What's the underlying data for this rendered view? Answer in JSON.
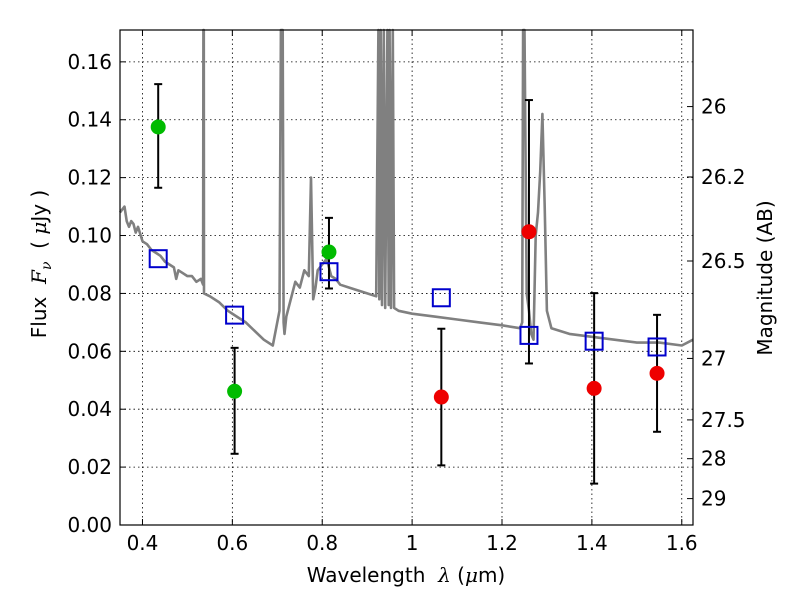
{
  "chart_data": {
    "type": "scatter",
    "xlabel": "Wavelength λ (μm)",
    "ylabel": "Flux F_ν (μJy)",
    "ylabel_right": "Magnitude (AB)",
    "xlim": [
      0.35,
      1.625
    ],
    "ylim": [
      0.0,
      0.171
    ],
    "grid": true,
    "x_ticks": [
      0.4,
      0.6,
      0.8,
      1.0,
      1.2,
      1.4,
      1.6
    ],
    "x_tick_labels": [
      "0.4",
      "0.6",
      "0.8",
      "1",
      "1.2",
      "1.4",
      "1.6"
    ],
    "y_ticks": [
      0.0,
      0.02,
      0.04,
      0.06,
      0.08,
      0.1,
      0.12,
      0.14,
      0.16
    ],
    "y_tick_labels": [
      "0.00",
      "0.02",
      "0.04",
      "0.06",
      "0.08",
      "0.10",
      "0.12",
      "0.14",
      "0.16"
    ],
    "right_ticks": [
      {
        "label": "26",
        "mag": 26.0
      },
      {
        "label": "26.2",
        "mag": 26.2
      },
      {
        "label": "26.5",
        "mag": 26.5
      },
      {
        "label": "27",
        "mag": 27.0
      },
      {
        "label": "27.5",
        "mag": 27.5
      },
      {
        "label": "28",
        "mag": 28.0
      },
      {
        "label": "29",
        "mag": 29.0
      }
    ],
    "model_spectrum": {
      "color": "#808080",
      "x": [
        0.35,
        0.36,
        0.365,
        0.37,
        0.375,
        0.38,
        0.385,
        0.39,
        0.4,
        0.41,
        0.42,
        0.43,
        0.44,
        0.45,
        0.46,
        0.47,
        0.475,
        0.48,
        0.49,
        0.5,
        0.51,
        0.52,
        0.53,
        0.535,
        0.5355,
        0.536,
        0.5365,
        0.537,
        0.55,
        0.57,
        0.59,
        0.61,
        0.63,
        0.65,
        0.67,
        0.69,
        0.705,
        0.708,
        0.71,
        0.712,
        0.714,
        0.716,
        0.72,
        0.73,
        0.74,
        0.75,
        0.76,
        0.77,
        0.775,
        0.78,
        0.785,
        0.79,
        0.8,
        0.81,
        0.82,
        0.83,
        0.84,
        0.86,
        0.88,
        0.9,
        0.92,
        0.925,
        0.927,
        0.93,
        0.933,
        0.937,
        0.94,
        0.945,
        0.948,
        0.95,
        0.953,
        0.957,
        0.96,
        0.97,
        1.0,
        1.05,
        1.1,
        1.15,
        1.2,
        1.24,
        1.245,
        1.247,
        1.25,
        1.255,
        1.26,
        1.265,
        1.27,
        1.275,
        1.28,
        1.285,
        1.29,
        1.295,
        1.3,
        1.31,
        1.35,
        1.4,
        1.45,
        1.5,
        1.55,
        1.6,
        1.625
      ],
      "y": [
        0.108,
        0.11,
        0.105,
        0.103,
        0.105,
        0.104,
        0.101,
        0.103,
        0.098,
        0.097,
        0.095,
        0.094,
        0.093,
        0.091,
        0.09,
        0.089,
        0.085,
        0.088,
        0.087,
        0.086,
        0.086,
        0.084,
        0.085,
        0.083,
        0.171,
        0.171,
        0.171,
        0.08,
        0.079,
        0.077,
        0.074,
        0.072,
        0.07,
        0.067,
        0.064,
        0.062,
        0.074,
        0.171,
        0.171,
        0.171,
        0.07,
        0.066,
        0.072,
        0.078,
        0.084,
        0.082,
        0.088,
        0.086,
        0.12,
        0.078,
        0.082,
        0.088,
        0.09,
        0.092,
        0.086,
        0.085,
        0.083,
        0.082,
        0.081,
        0.08,
        0.079,
        0.171,
        0.078,
        0.171,
        0.076,
        0.171,
        0.075,
        0.171,
        0.076,
        0.171,
        0.075,
        0.171,
        0.075,
        0.074,
        0.073,
        0.072,
        0.071,
        0.07,
        0.069,
        0.068,
        0.07,
        0.171,
        0.171,
        0.08,
        0.074,
        0.066,
        0.064,
        0.1,
        0.108,
        0.122,
        0.142,
        0.11,
        0.074,
        0.068,
        0.066,
        0.065,
        0.064,
        0.063,
        0.063,
        0.062,
        0.064
      ]
    },
    "series": [
      {
        "color": "#00bb00",
        "marker": "circle",
        "x": [
          0.435,
          0.605,
          0.815
        ],
        "values": [
          0.1375,
          0.0462,
          0.0943
        ],
        "err": [
          [
            0.021,
            0.0148
          ],
          [
            0.0216,
            0.015
          ],
          [
            0.0126,
            0.0118
          ]
        ]
      },
      {
        "color": "#ee0000",
        "marker": "circle",
        "x": [
          1.065,
          1.26,
          1.405,
          1.545
        ],
        "values": [
          0.0442,
          0.1013,
          0.0472,
          0.0524
        ],
        "err": [
          [
            0.0236,
            0.0236
          ],
          [
            0.0455,
            0.0455
          ],
          [
            0.0329,
            0.0329
          ],
          [
            0.0202,
            0.0202
          ]
        ]
      },
      {
        "color": "#0000cc",
        "marker": "open-square",
        "x": [
          0.435,
          0.605,
          0.815,
          1.065,
          1.26,
          1.405,
          1.545
        ],
        "values": [
          0.092,
          0.0725,
          0.0875,
          0.0785,
          0.0655,
          0.0635,
          0.0615
        ]
      }
    ]
  }
}
